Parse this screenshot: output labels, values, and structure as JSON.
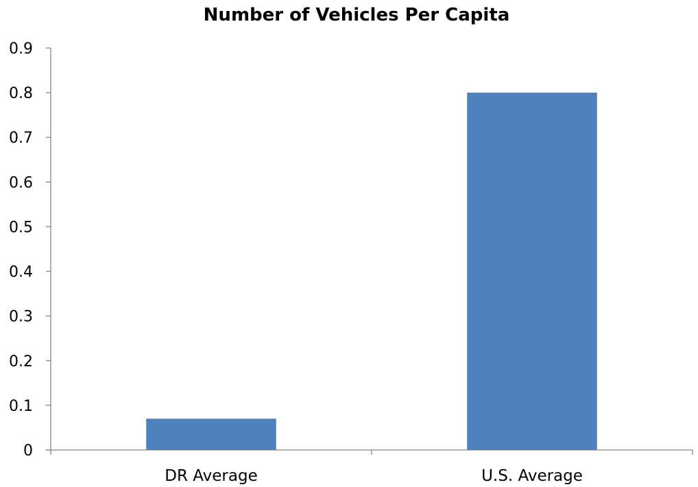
{
  "chart_data": {
    "type": "bar",
    "title": "Number of Vehicles Per Capita",
    "xlabel": "",
    "ylabel": "",
    "categories": [
      "DR Average",
      "U.S. Average"
    ],
    "values": [
      0.07,
      0.8
    ],
    "ylim": [
      0,
      0.9
    ],
    "yticks": [
      "0",
      "0.1",
      "0.2",
      "0.3",
      "0.4",
      "0.5",
      "0.6",
      "0.7",
      "0.8",
      "0.9"
    ],
    "grid": false,
    "legend": "none",
    "bar_color": "#4F81BD"
  }
}
